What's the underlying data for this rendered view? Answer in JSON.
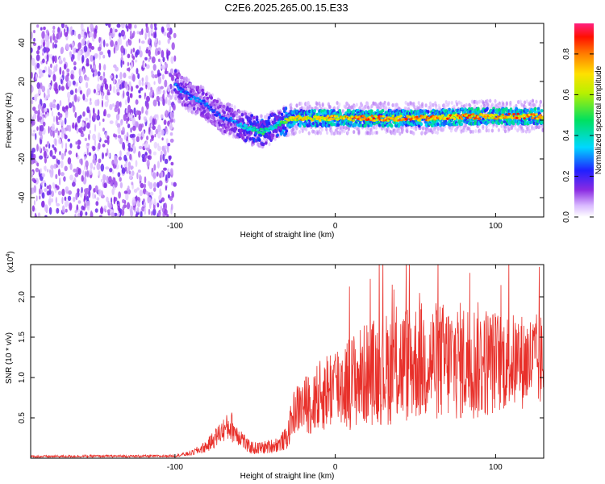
{
  "title": "C2E6.2025.265.00.15.E33",
  "chart_data": [
    {
      "type": "heatmap",
      "panel": "spectrogram",
      "xlabel": "Height of straight line (km)",
      "ylabel": "Frequency (Hz)",
      "xlim": [
        -190,
        130
      ],
      "ylim": [
        -50,
        50
      ],
      "xticks": [
        -100,
        0,
        100
      ],
      "yticks": [
        -40,
        -20,
        0,
        20,
        40
      ],
      "colorbar": {
        "label": "Normalized spectral amplitude",
        "range": [
          0,
          0.95
        ],
        "ticks": [
          0.0,
          0.2,
          0.4,
          0.6,
          0.8
        ]
      },
      "noise_region": {
        "x_from": -190,
        "x_to": -100,
        "amplitude": 0.1
      },
      "signal_ridge": {
        "x": [
          -100,
          -95,
          -90,
          -85,
          -80,
          -75,
          -70,
          -65,
          -60,
          -55,
          -50,
          -45,
          -40,
          -35,
          -30,
          -25,
          -20,
          -10,
          0,
          20,
          40,
          60,
          80,
          100,
          120,
          130
        ],
        "freq": [
          19,
          15,
          12,
          10,
          8,
          4,
          1,
          0,
          -2,
          -4,
          -5,
          -6,
          -4,
          -2,
          0,
          1,
          1,
          1,
          1,
          1,
          1,
          1,
          2,
          2,
          2,
          2
        ],
        "amplitude": [
          0.35,
          0.3,
          0.3,
          0.3,
          0.3,
          0.25,
          0.3,
          0.3,
          0.35,
          0.4,
          0.5,
          0.55,
          0.4,
          0.5,
          0.7,
          0.75,
          0.8,
          0.8,
          0.8,
          0.85,
          0.85,
          0.85,
          0.85,
          0.85,
          0.85,
          0.85
        ]
      }
    },
    {
      "type": "line",
      "panel": "snr",
      "xlabel": "Height of straight line (km)",
      "ylabel": "SNR (10 * v/v)",
      "y_multiplier": "(x10",
      "y_multiplier_exp": "4",
      "y_multiplier_close": ")",
      "xlim": [
        -190,
        130
      ],
      "ylim": [
        0,
        24000
      ],
      "xticks": [
        -100,
        0,
        100
      ],
      "yticks": [
        5000,
        10000,
        15000,
        20000
      ],
      "ytick_labels": [
        "0.5",
        "1.0",
        "1.5",
        "2.0"
      ],
      "color": "#e8302a",
      "series": [
        {
          "name": "SNR",
          "x": [
            -190,
            -150,
            -110,
            -100,
            -90,
            -80,
            -75,
            -70,
            -65,
            -62,
            -58,
            -55,
            -50,
            -45,
            -40,
            -35,
            -30,
            -27,
            -25,
            -20,
            -15,
            -10,
            -5,
            0,
            10,
            20,
            30,
            40,
            50,
            60,
            70,
            80,
            90,
            100,
            110,
            120,
            130
          ],
          "envelope": [
            200,
            250,
            250,
            300,
            600,
            1500,
            2500,
            3500,
            4000,
            3200,
            2500,
            1500,
            1200,
            1300,
            1500,
            1800,
            2500,
            5000,
            6000,
            6500,
            7000,
            7500,
            8500,
            9000,
            9500,
            10500,
            11000,
            11500,
            12000,
            12000,
            12000,
            12000,
            12000,
            12000,
            12000,
            12000,
            12000
          ],
          "spread": [
            150,
            150,
            150,
            150,
            300,
            800,
            1200,
            1500,
            2000,
            1500,
            1200,
            900,
            800,
            800,
            900,
            1000,
            1500,
            2500,
            3000,
            3500,
            4000,
            4500,
            5000,
            5500,
            6000,
            6500,
            7000,
            7500,
            7500,
            7500,
            7500,
            7500,
            7500,
            6500,
            6000,
            6000,
            6000
          ]
        }
      ]
    }
  ]
}
